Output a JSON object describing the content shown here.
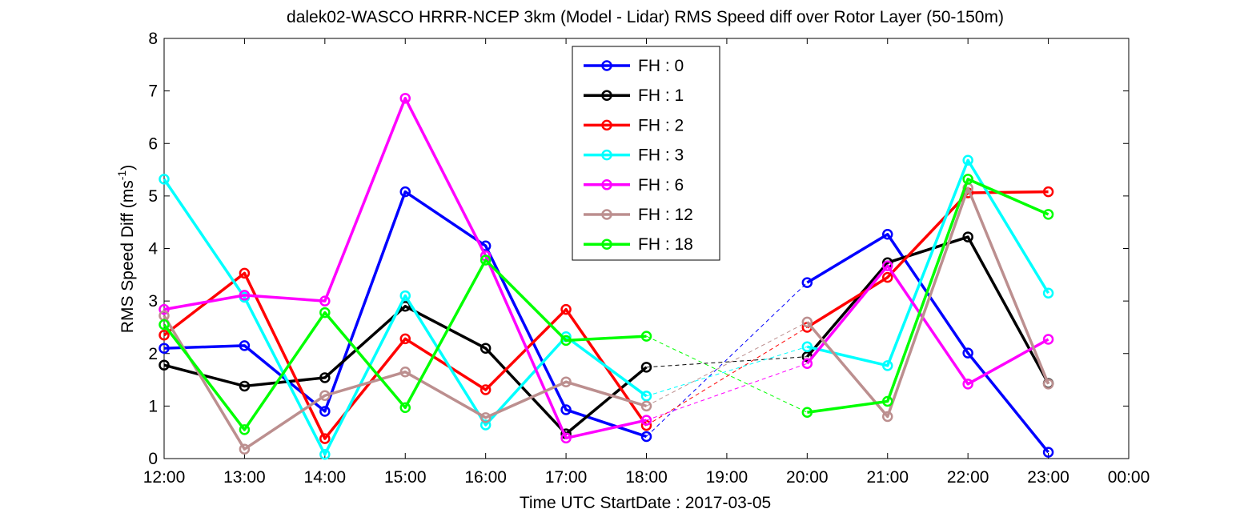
{
  "chart_data": {
    "type": "line",
    "title": "dalek02-WASCO HRRR-NCEP 3km (Model - Lidar) RMS Speed diff over Rotor Layer (50-150m)",
    "xlabel": "Time UTC    StartDate : 2017-03-05",
    "ylabel_main": "RMS Speed Diff (ms",
    "ylabel_sup": "-1",
    "ylabel_tail": ")",
    "x_ticks": [
      "12:00",
      "13:00",
      "14:00",
      "15:00",
      "16:00",
      "17:00",
      "18:00",
      "19:00",
      "20:00",
      "21:00",
      "22:00",
      "23:00",
      "00:00"
    ],
    "x_hours": [
      12,
      13,
      14,
      15,
      16,
      17,
      18,
      19,
      20,
      21,
      22,
      23,
      24
    ],
    "xlim": [
      12,
      24
    ],
    "ylim": [
      0,
      8
    ],
    "y_ticks": [
      "0",
      "1",
      "2",
      "3",
      "4",
      "5",
      "6",
      "7",
      "8"
    ],
    "grid": false,
    "legend_position": "top-center",
    "gap_style": "dashed",
    "series": [
      {
        "name": "FH : 0",
        "color": "#0000ff",
        "x": [
          12,
          13,
          14,
          15,
          16,
          17,
          18,
          20,
          21,
          22,
          23
        ],
        "values": [
          2.1,
          2.15,
          0.9,
          5.08,
          4.05,
          0.93,
          0.42,
          3.35,
          4.27,
          2.01,
          0.12
        ]
      },
      {
        "name": "FH : 1",
        "color": "#000000",
        "x": [
          12,
          13,
          14,
          15,
          16,
          17,
          18,
          20,
          21,
          22,
          23
        ],
        "values": [
          1.78,
          1.38,
          1.54,
          2.9,
          2.1,
          0.47,
          1.74,
          1.94,
          3.73,
          4.22,
          1.43
        ]
      },
      {
        "name": "FH : 2",
        "color": "#ff0000",
        "x": [
          12,
          13,
          14,
          15,
          16,
          17,
          18,
          20,
          21,
          22,
          23
        ],
        "values": [
          2.35,
          3.53,
          0.38,
          2.28,
          1.31,
          2.84,
          0.63,
          2.5,
          3.45,
          5.06,
          5.08
        ]
      },
      {
        "name": "FH : 3",
        "color": "#00ffff",
        "x": [
          12,
          13,
          14,
          15,
          16,
          17,
          18,
          20,
          21,
          22,
          23
        ],
        "values": [
          5.32,
          3.07,
          0.08,
          3.1,
          0.64,
          2.32,
          1.19,
          2.13,
          1.77,
          5.68,
          3.15
        ]
      },
      {
        "name": "FH : 6",
        "color": "#ff00ff",
        "x": [
          12,
          13,
          14,
          15,
          16,
          17,
          18,
          20,
          21,
          22,
          23
        ],
        "values": [
          2.84,
          3.11,
          3.0,
          6.86,
          3.86,
          0.39,
          0.73,
          1.81,
          3.67,
          1.42,
          2.27
        ]
      },
      {
        "name": "FH : 12",
        "color": "#bc8f8f",
        "x": [
          12,
          13,
          14,
          15,
          16,
          17,
          18,
          20,
          21,
          22,
          23
        ],
        "values": [
          2.72,
          0.18,
          1.2,
          1.65,
          0.78,
          1.46,
          1.0,
          2.6,
          0.8,
          5.15,
          1.42
        ]
      },
      {
        "name": "FH : 18",
        "color": "#00ff00",
        "x": [
          12,
          13,
          14,
          15,
          16,
          17,
          18,
          20,
          21,
          22,
          23
        ],
        "values": [
          2.55,
          0.55,
          2.78,
          0.97,
          3.78,
          2.25,
          2.33,
          0.88,
          1.09,
          5.32,
          4.65
        ]
      }
    ]
  }
}
